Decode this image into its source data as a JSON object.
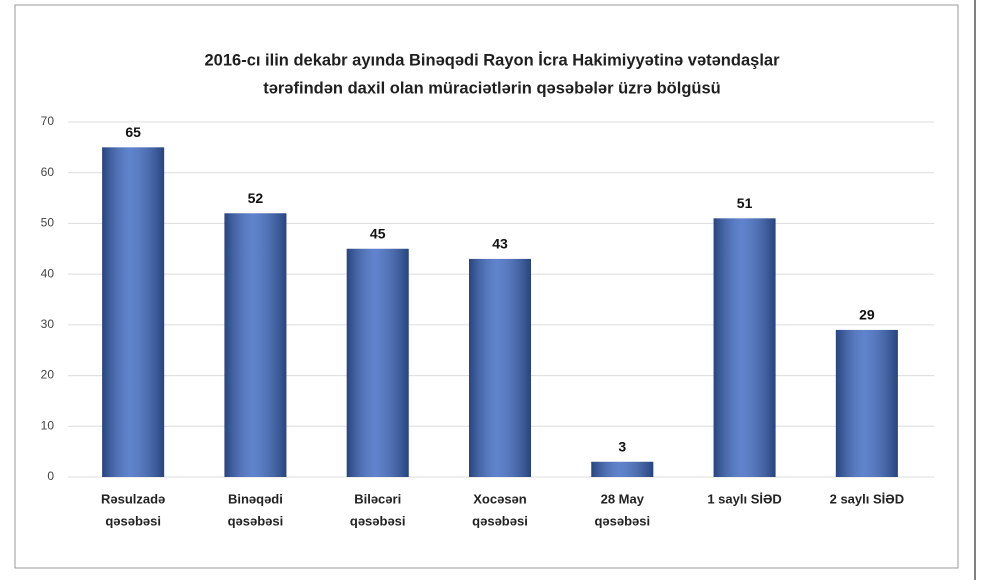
{
  "chart_data": {
    "type": "bar",
    "title": [
      "2016-cı ilin dekabr ayında Binəqədi Rayon İcra Hakimiyyətinə vətəndaşlar",
      "tərəfindən daxil olan müraciətlərin qəsəbələr üzrə bölgüsü"
    ],
    "categories": [
      [
        "Rəsulzadə",
        "qəsəbəsi"
      ],
      [
        "Binəqədi",
        "qəsəbəsi"
      ],
      [
        "Biləcəri",
        "qəsəbəsi"
      ],
      [
        "Xocəsən",
        "qəsəbəsi"
      ],
      [
        "28 May",
        "qəsəbəsi"
      ],
      [
        "1 saylı SİƏD"
      ],
      [
        "2 saylı SİƏD"
      ]
    ],
    "values": [
      65,
      52,
      45,
      43,
      3,
      51,
      29
    ],
    "color": "#3c68c2",
    "ylim": [
      0,
      70
    ],
    "yticks": [
      0,
      10,
      20,
      30,
      40,
      50,
      60,
      70
    ],
    "grid": true
  }
}
